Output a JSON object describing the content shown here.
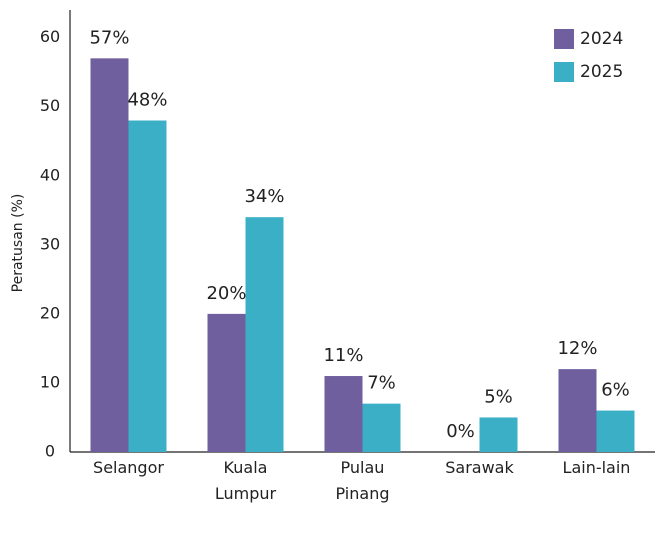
{
  "chart_data": {
    "type": "bar",
    "y_label": "Peratusan (%)",
    "categories": [
      "Selangor",
      "Kuala Lumpur",
      "Pulau Pinang",
      "Sarawak",
      "Lain-lain"
    ],
    "series": [
      {
        "name": "2024",
        "color": "#6f5f9e",
        "values": [
          57,
          20,
          11,
          0,
          12
        ],
        "value_labels": [
          "57%",
          "20%",
          "11%",
          "0%",
          "12%"
        ]
      },
      {
        "name": "2025",
        "color": "#3aafc6",
        "values": [
          48,
          34,
          7,
          5,
          6
        ],
        "value_labels": [
          "48%",
          "34%",
          "7%",
          "5%",
          "6%"
        ]
      }
    ],
    "ylim": [
      0,
      64
    ],
    "yticks": [
      0,
      10,
      20,
      30,
      40,
      50,
      60
    ],
    "grid": false,
    "legend": "upper right"
  }
}
